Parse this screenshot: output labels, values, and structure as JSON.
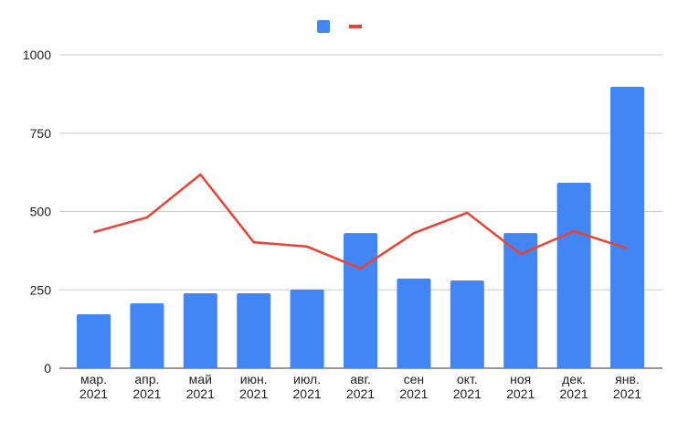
{
  "chart_data": {
    "type": "bar-line",
    "categories": [
      [
        "мар.",
        "2021"
      ],
      [
        "апр.",
        "2021"
      ],
      [
        "май",
        "2021"
      ],
      [
        "июн.",
        "2021"
      ],
      [
        "июл.",
        "2021"
      ],
      [
        "авг.",
        "2021"
      ],
      [
        "сен",
        "2021"
      ],
      [
        "окт.",
        "2021"
      ],
      [
        "ноя",
        "2021"
      ],
      [
        "дек.",
        "2021"
      ],
      [
        "янв.",
        "2021"
      ]
    ],
    "series": [
      {
        "type": "bar",
        "color": "#4285f4",
        "values": [
          172,
          207,
          239,
          239,
          251,
          431,
          286,
          280,
          431,
          592,
          898
        ]
      },
      {
        "type": "line",
        "color": "#ea4335",
        "values": [
          434,
          481,
          618,
          402,
          388,
          318,
          431,
          496,
          364,
          437,
          382
        ]
      }
    ],
    "ylim": [
      0,
      1000
    ],
    "yticks": [
      0,
      250,
      500,
      750,
      1000
    ],
    "grid": true,
    "legend": "top"
  }
}
